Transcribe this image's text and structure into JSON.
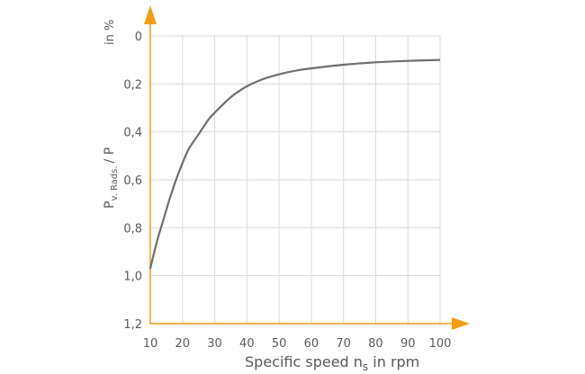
{
  "chart_data": {
    "type": "line",
    "title": "",
    "xlabel": "Specific speed n",
    "xlabel_sub": "s",
    "xlabel_suffix": " in rpm",
    "ylabel_main": "P",
    "ylabel_sub": "v. Rads.",
    "ylabel_suffix": "/ P",
    "ylabel_unit": "in %",
    "xlim": [
      10,
      100
    ],
    "ylim": [
      0,
      1.2
    ],
    "y_inverted": true,
    "x_ticks": [
      "10",
      "20",
      "30",
      "40",
      "50",
      "60",
      "70",
      "80",
      "90",
      "100"
    ],
    "y_ticks": [
      "0",
      "0,2",
      "0,4",
      "0,6",
      "0,8",
      "1,0",
      "1,2"
    ],
    "grid": true,
    "colors": {
      "axis": "#f39c12",
      "curve": "#6e6e6e",
      "grid": "#d9d9d9",
      "text": "#595959"
    },
    "series": [
      {
        "x": [
          10,
          12,
          14,
          16,
          18,
          20,
          22,
          25,
          28,
          30,
          33,
          36,
          40,
          45,
          50,
          55,
          60,
          70,
          80,
          90,
          100
        ],
        "y": [
          0.97,
          0.86,
          0.77,
          0.68,
          0.6,
          0.53,
          0.47,
          0.41,
          0.35,
          0.32,
          0.28,
          0.245,
          0.21,
          0.18,
          0.16,
          0.145,
          0.135,
          0.12,
          0.11,
          0.104,
          0.1
        ]
      }
    ]
  }
}
